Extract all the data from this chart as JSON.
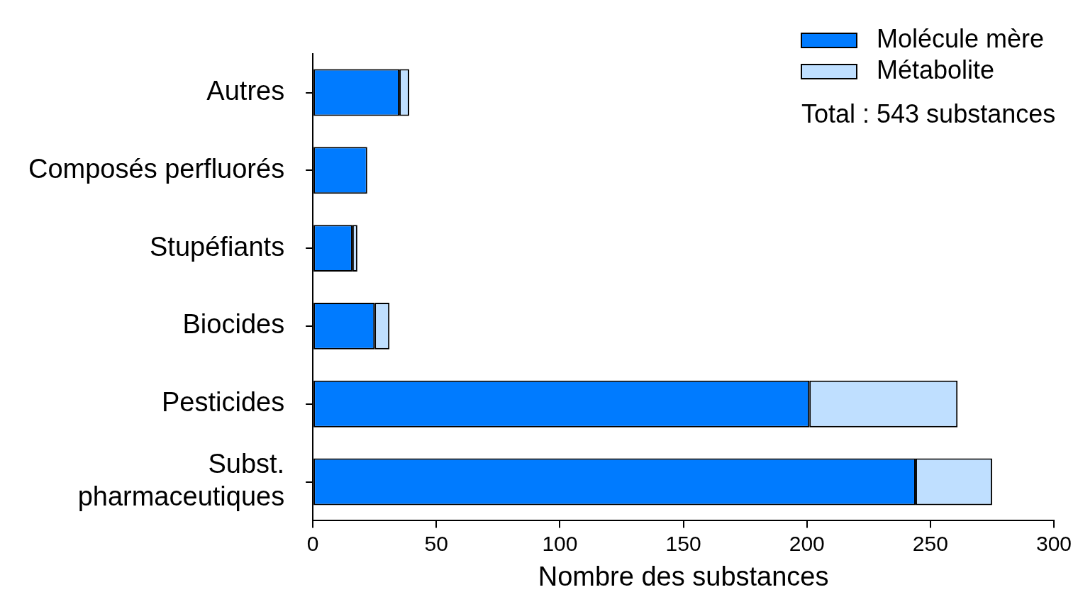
{
  "chart_data": {
    "type": "bar",
    "orientation": "horizontal",
    "stacked": true,
    "xlabel": "Nombre des substances",
    "categories": [
      "Autres",
      "Composés perfluorés",
      "Stupéfiants",
      "Biocides",
      "Pesticides",
      "Subst. pharmaceutiques"
    ],
    "series": [
      {
        "name": "Molécule mère",
        "color": "#007bff",
        "values": [
          35,
          22,
          16,
          25,
          201,
          244
        ]
      },
      {
        "name": "Métabolite",
        "color": "#bfdfff",
        "values": [
          4,
          0,
          2,
          6,
          60,
          31
        ]
      }
    ],
    "xlim": [
      0,
      300
    ],
    "xticks": [
      0,
      50,
      100,
      150,
      200,
      250,
      300
    ],
    "legend": "top right",
    "grid": false,
    "annotations": [
      "Total : 543 substances"
    ]
  }
}
